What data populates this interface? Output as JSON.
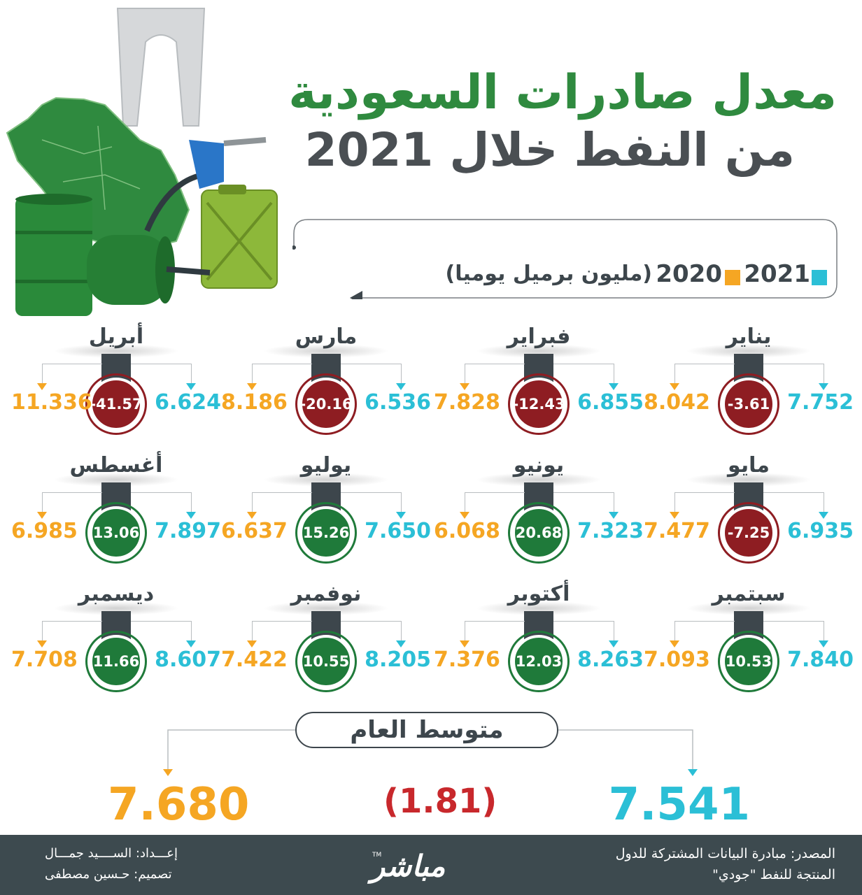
{
  "title": {
    "line1": "معدل صادرات السعودية",
    "line2": "من النفط خلال 2021"
  },
  "legend": {
    "label_2021": "2021",
    "label_2020": "2020",
    "unit": "(مليون برميل يوميا)",
    "color_2021": "#2bbfd6",
    "color_2020": "#f5a623"
  },
  "chart_data": {
    "type": "table",
    "title": "معدل صادرات السعودية من النفط خلال 2021",
    "unit": "(مليون برميل يوميا)",
    "series": [
      {
        "name": "2021",
        "values": [
          7.752,
          6.855,
          6.536,
          6.624,
          6.935,
          7.323,
          7.65,
          7.897,
          7.84,
          8.263,
          8.205,
          8.607
        ]
      },
      {
        "name": "2020",
        "values": [
          8.042,
          7.828,
          8.186,
          11.336,
          7.477,
          6.068,
          6.637,
          6.985,
          7.093,
          7.376,
          7.422,
          7.708
        ]
      }
    ],
    "categories": [
      "يناير",
      "فبراير",
      "مارس",
      "أبريل",
      "مايو",
      "يونيو",
      "يوليو",
      "أغسطس",
      "سبتمبر",
      "أكتوبر",
      "نوفمبر",
      "ديسمبر"
    ],
    "months": [
      {
        "name": "يناير",
        "v2021": "7.752",
        "v2020": "8.042",
        "change": "-3.61"
      },
      {
        "name": "فبراير",
        "v2021": "6.855",
        "v2020": "7.828",
        "change": "-12.43"
      },
      {
        "name": "مارس",
        "v2021": "6.536",
        "v2020": "8.186",
        "change": "-20.16"
      },
      {
        "name": "أبريل",
        "v2021": "6.624",
        "v2020": "11.336",
        "change": "-41.57"
      },
      {
        "name": "مايو",
        "v2021": "6.935",
        "v2020": "7.477",
        "change": "-7.25"
      },
      {
        "name": "يونيو",
        "v2021": "7.323",
        "v2020": "6.068",
        "change": "20.68"
      },
      {
        "name": "يوليو",
        "v2021": "7.650",
        "v2020": "6.637",
        "change": "15.26"
      },
      {
        "name": "أغسطس",
        "v2021": "7.897",
        "v2020": "6.985",
        "change": "13.06"
      },
      {
        "name": "سبتمبر",
        "v2021": "7.840",
        "v2020": "7.093",
        "change": "10.53"
      },
      {
        "name": "أكتوبر",
        "v2021": "8.263",
        "v2020": "7.376",
        "change": "12.03"
      },
      {
        "name": "نوفمبر",
        "v2021": "8.205",
        "v2020": "7.422",
        "change": "10.55"
      },
      {
        "name": "ديسمبر",
        "v2021": "8.607",
        "v2020": "7.708",
        "change": "11.66"
      }
    ],
    "average": {
      "label": "متوسط العام",
      "v2021": "7.541",
      "v2020": "7.680",
      "change": "(1.81)"
    },
    "colors": {
      "positive": "#1f7a3a",
      "negative": "#8e1d22"
    }
  },
  "footer": {
    "source_line1": "المصدر: مبادرة البيانات المشتركة للدول",
    "source_line2": "المنتجة للنفط \"جودي\"",
    "prepared": "إعـــداد: الســــيد جمـــال",
    "design": "تصميم: حـسين مصطفى",
    "logo": "مباشر",
    "tm": "TM"
  }
}
